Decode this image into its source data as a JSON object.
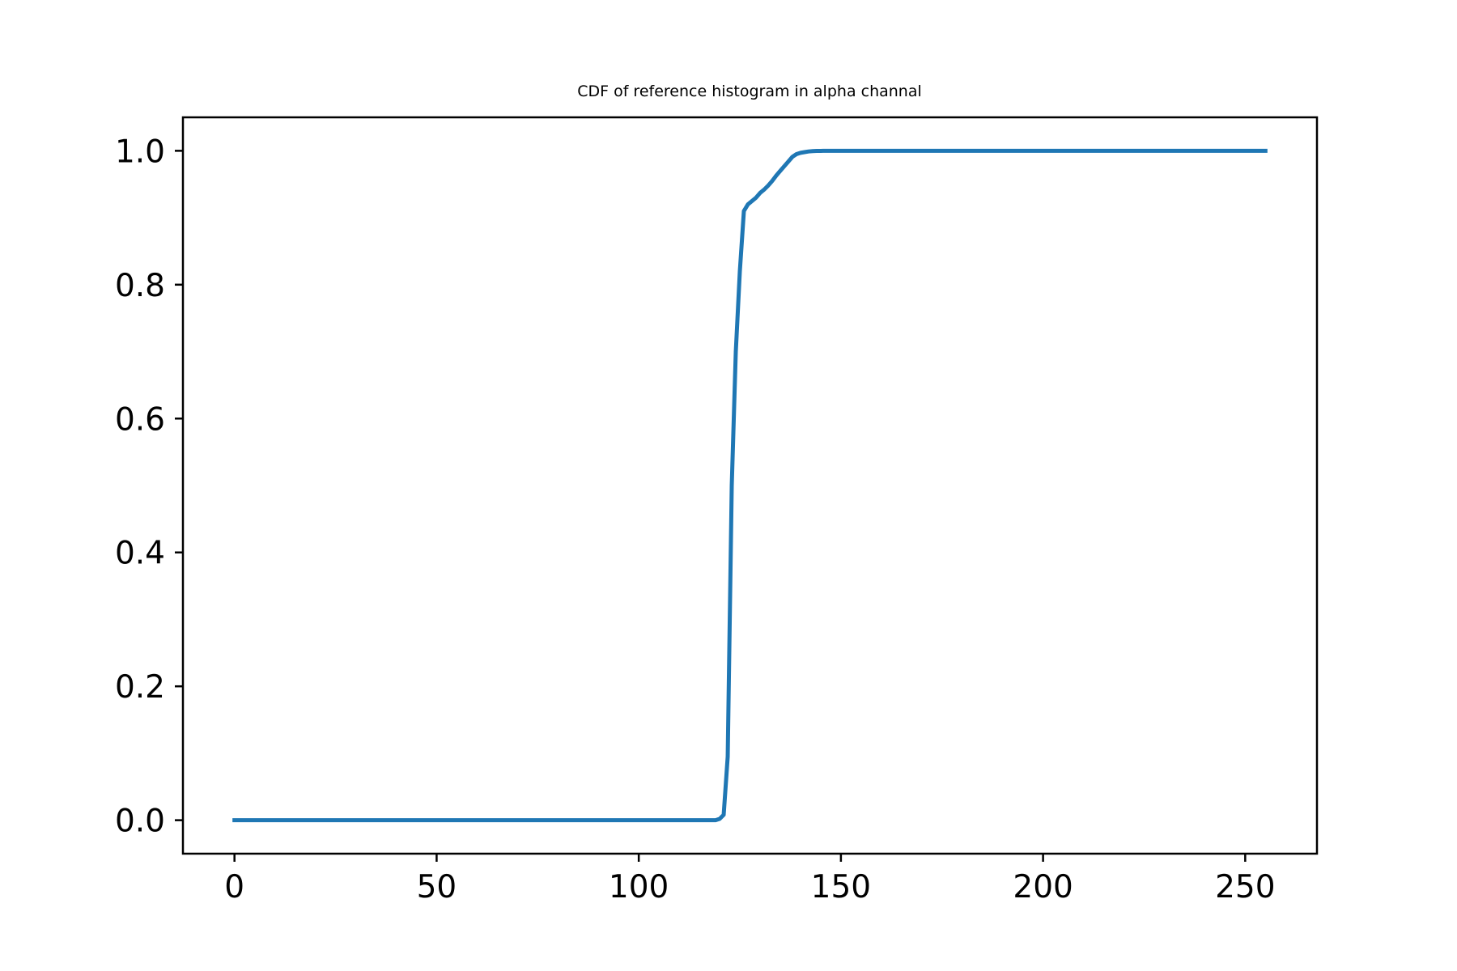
{
  "chart_data": {
    "type": "line",
    "title": "CDF of reference histogram in alpha channal",
    "xlabel": "",
    "ylabel": "",
    "xlim": [
      -12.75,
      267.75
    ],
    "ylim": [
      -0.05,
      1.05
    ],
    "xticks": [
      0,
      50,
      100,
      150,
      200,
      250
    ],
    "xtick_labels": [
      "0",
      "50",
      "100",
      "150",
      "200",
      "250"
    ],
    "yticks": [
      0.0,
      0.2,
      0.4,
      0.6,
      0.8,
      1.0
    ],
    "ytick_labels": [
      "0.0",
      "0.2",
      "0.4",
      "0.6",
      "0.8",
      "1.0"
    ],
    "grid": false,
    "legend": "none",
    "series": [
      {
        "color": "#1f77b4",
        "x": [
          0,
          50,
          100,
          118,
          119,
          120,
          121,
          122,
          123,
          124,
          125,
          126,
          127,
          128,
          129,
          130,
          131,
          132,
          133,
          134,
          135,
          136,
          137,
          138,
          139,
          140,
          141,
          142,
          143,
          144,
          145,
          146,
          148,
          150,
          200,
          255
        ],
        "y": [
          0.0,
          0.0,
          0.0,
          0.0,
          0.0,
          0.002,
          0.008,
          0.095,
          0.5,
          0.7,
          0.82,
          0.91,
          0.92,
          0.925,
          0.93,
          0.937,
          0.942,
          0.948,
          0.955,
          0.963,
          0.97,
          0.977,
          0.984,
          0.991,
          0.995,
          0.997,
          0.998,
          0.999,
          0.9995,
          0.9998,
          0.9999,
          1.0,
          1.0,
          1.0,
          1.0,
          1.0
        ]
      }
    ]
  }
}
